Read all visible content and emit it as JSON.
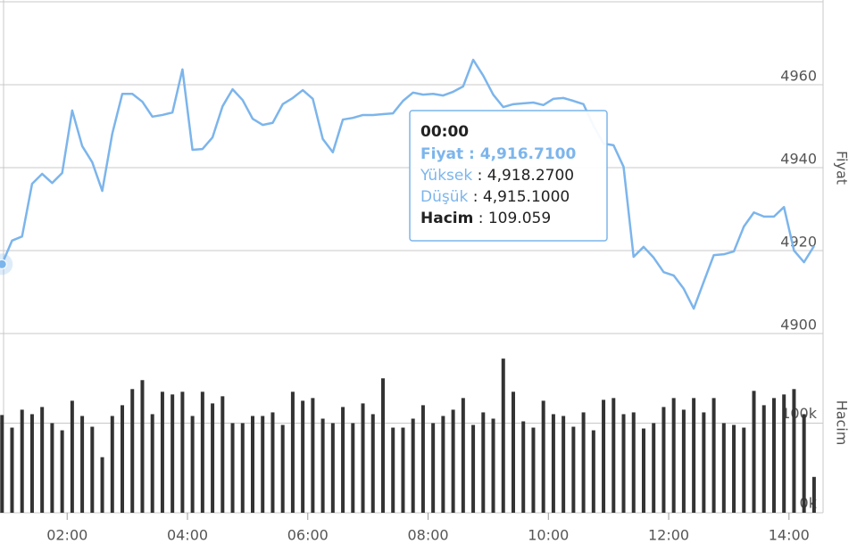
{
  "chart_data": {
    "type": "line",
    "x": [
      55,
      65,
      75,
      85,
      95,
      105,
      115,
      125,
      135,
      145,
      155,
      165,
      175,
      185,
      195,
      205,
      215,
      225,
      235,
      245,
      255,
      265,
      275,
      285,
      295,
      305,
      315,
      325,
      335,
      345,
      355,
      365,
      375,
      385,
      395,
      405,
      415,
      425,
      435,
      445,
      455,
      465,
      475,
      485,
      495,
      505,
      515,
      525,
      535,
      545,
      555,
      565,
      575,
      585,
      595,
      605,
      615,
      625,
      635,
      645,
      655,
      665,
      675,
      685,
      695,
      705,
      715,
      725,
      735,
      745,
      755,
      765,
      775,
      785,
      795,
      805,
      815,
      825,
      835,
      845,
      855,
      865
    ],
    "xlim": [
      53,
      874
    ],
    "xticks": [
      {
        "value": 120,
        "label": "02:00"
      },
      {
        "value": 240,
        "label": "04:00"
      },
      {
        "value": 360,
        "label": "06:00"
      },
      {
        "value": 480,
        "label": "08:00"
      },
      {
        "value": 600,
        "label": "10:00"
      },
      {
        "value": 720,
        "label": "12:00"
      },
      {
        "value": 840,
        "label": "14:00"
      }
    ],
    "y_label": "Fiyat",
    "ylim": [
      4900,
      4980
    ],
    "yticks": [
      4900,
      4920,
      4940,
      4960
    ],
    "y2_label": "Hacim",
    "y2lim": [
      0,
      200000
    ],
    "y2ticks": [
      {
        "value": 0,
        "label": "0k"
      },
      {
        "value": 100000,
        "label": "100k"
      }
    ],
    "grid": true,
    "series": [
      {
        "type": "line",
        "color": "#7cb5ec",
        "values": [
          4916.71,
          4922.4,
          4923.4,
          4936.1,
          4938.5,
          4936.3,
          4938.7,
          4953.8,
          4945.2,
          4941.3,
          4934.4,
          4948.2,
          4957.8,
          4957.8,
          4955.9,
          4952.3,
          4952.7,
          4953.3,
          4963.7,
          4944.3,
          4944.5,
          4947.3,
          4954.8,
          4958.9,
          4956.3,
          4951.8,
          4950.3,
          4950.8,
          4955.3,
          4956.8,
          4958.7,
          4956.6,
          4946.9,
          4943.7,
          4951.6,
          4952.0,
          4952.7,
          4952.7,
          4952.9,
          4953.1,
          4956.1,
          4958.1,
          4957.6,
          4957.8,
          4957.4,
          4958.3,
          4959.6,
          4966.0,
          4962.2,
          4957.6,
          4954.6,
          4955.3,
          4955.5,
          4955.7,
          4955.1,
          4956.6,
          4956.8,
          4956.1,
          4955.3,
          4950.1,
          4945.8,
          4945.4,
          4940.2,
          4918.5,
          4920.9,
          4918.3,
          4914.8,
          4914.0,
          4910.8,
          4906.0,
          4912.5,
          4918.9,
          4919.1,
          4919.8,
          4925.8,
          4929.2,
          4928.2,
          4928.2,
          4930.5,
          4920.0,
          4917.2,
          4921.1
        ]
      },
      {
        "type": "bar",
        "axis": "y2",
        "color": "#333333",
        "values": [
          109059,
          95000,
          115000,
          110000,
          118000,
          100000,
          92000,
          125000,
          108000,
          96000,
          62000,
          108000,
          120000,
          138000,
          148000,
          110000,
          135000,
          132000,
          135000,
          108000,
          135000,
          122000,
          130000,
          100000,
          100000,
          108000,
          108000,
          112000,
          98000,
          135000,
          125000,
          128000,
          105000,
          100000,
          118000,
          100000,
          122000,
          110000,
          150000,
          95000,
          95000,
          105000,
          120000,
          100000,
          108000,
          115000,
          128000,
          98000,
          112000,
          105000,
          172000,
          135000,
          102000,
          95000,
          125000,
          110000,
          108000,
          96000,
          112000,
          92000,
          126000,
          128000,
          110000,
          112000,
          94000,
          100000,
          118000,
          128000,
          115000,
          128000,
          112000,
          128000,
          100000,
          98000,
          95000,
          136000,
          120000,
          128000,
          132000,
          138000,
          110000,
          40000
        ]
      }
    ],
    "tooltip": {
      "time": "00:00",
      "items": [
        {
          "label": "Fiyat",
          "text": " : 4,916.7100"
        },
        {
          "label": "Yüksek",
          "text": " : 4,918.2700"
        },
        {
          "label": "Düşük",
          "text": " : 4,915.1000"
        },
        {
          "label": "Hacim",
          "text": " : 109.059"
        }
      ]
    }
  }
}
